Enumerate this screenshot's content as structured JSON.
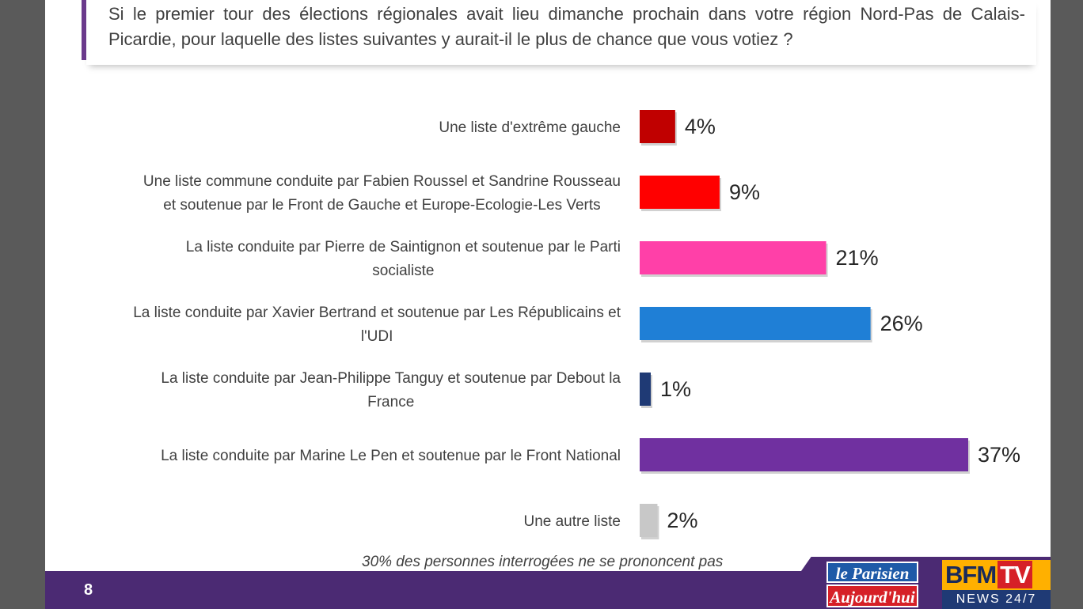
{
  "question": "Si le premier tour des élections régionales avait lieu dimanche prochain dans votre région Nord-Pas de Calais-Picardie, pour laquelle des listes suivantes y aurait-il le plus de chance que vous votiez ?",
  "note": "30% des personnes interrogées ne se prononcent pas",
  "page_number": "8",
  "logos": {
    "parisien_top": "le Parisien",
    "parisien_bottom": "Aujourd'hui",
    "bfm_main": "BFM",
    "bfm_tv": "TV",
    "bfm_tagline": "NEWS 24/7"
  },
  "chart_data": {
    "type": "bar",
    "orientation": "horizontal",
    "title": "",
    "xlabel": "",
    "ylabel": "",
    "categories": [
      [
        "Une liste d'extrême gauche"
      ],
      [
        "Une liste commune conduite par Fabien Roussel et Sandrine Rousseau",
        "et soutenue par le Front de Gauche et Europe-Ecologie-Les Verts"
      ],
      [
        "La liste conduite par Pierre de Saintignon et soutenue par le Parti",
        "socialiste"
      ],
      [
        "La liste conduite par Xavier Bertrand et soutenue par Les Républicains et",
        "l'UDI"
      ],
      [
        "La liste conduite par Jean-Philippe Tanguy et soutenue par Debout la",
        "France"
      ],
      [
        "La liste conduite par Marine Le Pen et soutenue par le Front National"
      ],
      [
        "Une autre liste"
      ]
    ],
    "values": [
      4,
      9,
      21,
      26,
      1,
      37,
      2
    ],
    "value_labels": [
      "4%",
      "9%",
      "21%",
      "26%",
      "1%",
      "37%",
      "2%"
    ],
    "colors": [
      "#c00000",
      "#ff0000",
      "#ff40a8",
      "#1f7fd6",
      "#1f3a75",
      "#7030a0",
      "#c8c8c8"
    ],
    "xlim": [
      0,
      37
    ],
    "grid": false,
    "legend": "none"
  }
}
